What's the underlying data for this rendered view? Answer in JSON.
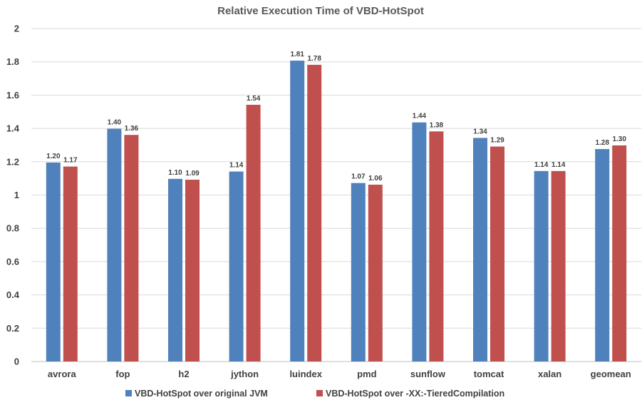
{
  "chart_data": {
    "type": "bar",
    "title": "Relative Execution Time of VBD-HotSpot",
    "xlabel": "",
    "ylabel": "",
    "ylim": [
      0,
      2
    ],
    "yticks": [
      "0",
      "0.2",
      "0.4",
      "0.6",
      "0.8",
      "1",
      "1.2",
      "1.4",
      "1.6",
      "1.8",
      "2"
    ],
    "grid": true,
    "legend_position": "bottom",
    "categories": [
      "avrora",
      "fop",
      "h2",
      "jython",
      "luindex",
      "pmd",
      "sunflow",
      "tomcat",
      "xalan",
      "geomean"
    ],
    "series": [
      {
        "name": "VBD-HotSpot over original JVM",
        "color": "#4F81BD",
        "values": [
          1.195,
          1.398,
          1.097,
          1.141,
          1.807,
          1.072,
          1.436,
          1.343,
          1.144,
          1.276
        ],
        "labels": [
          "1.20",
          "1.40",
          "1.10",
          "1.14",
          "1.81",
          "1.07",
          "1.44",
          "1.34",
          "1.14",
          "1.28"
        ]
      },
      {
        "name": "VBD-HotSpot over -XX:-TieredCompilation",
        "color": "#C0504D",
        "values": [
          1.171,
          1.361,
          1.092,
          1.542,
          1.782,
          1.062,
          1.382,
          1.291,
          1.144,
          1.298
        ],
        "labels": [
          "1.17",
          "1.36",
          "1.09",
          "1.54",
          "1.78",
          "1.06",
          "1.38",
          "1.29",
          "1.14",
          "1.30"
        ]
      }
    ]
  }
}
